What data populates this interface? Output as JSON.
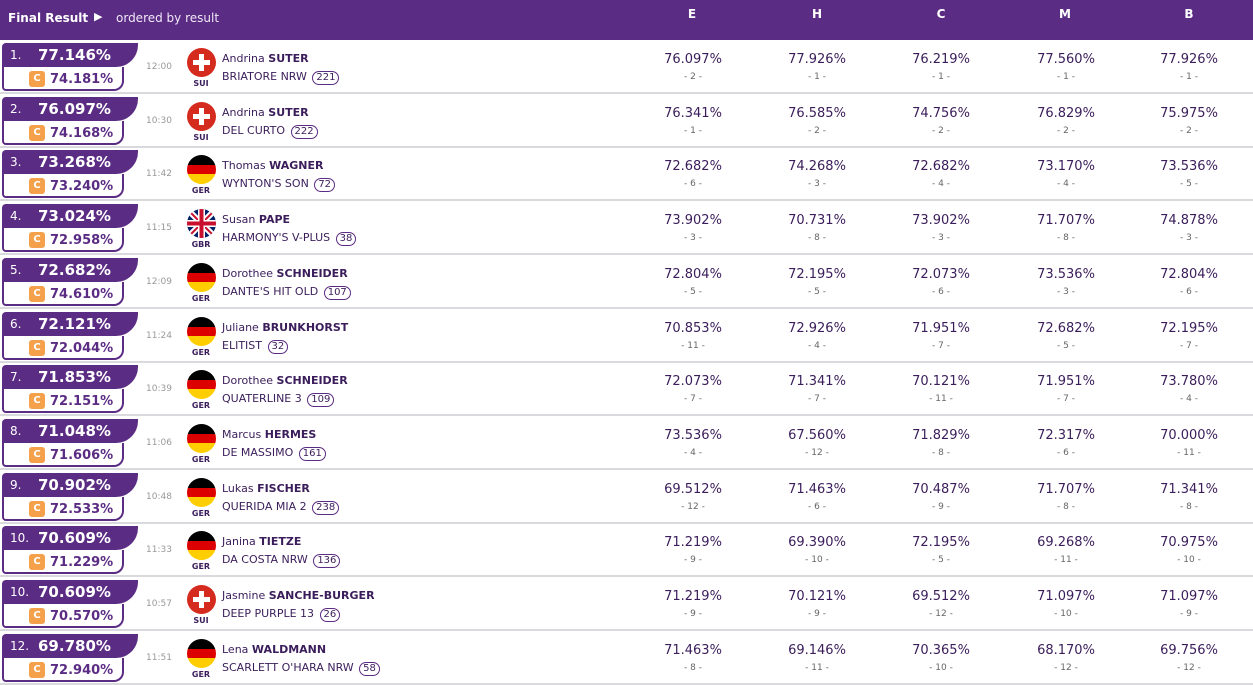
{
  "header": {
    "title": "Final Result",
    "arrow": "▶",
    "subtitle": "ordered by result",
    "judges": [
      "E",
      "H",
      "C",
      "M",
      "B"
    ]
  },
  "colors": {
    "brand": "#5b2c83",
    "cup": "#f5a04a"
  },
  "rows": [
    {
      "rank": "1.",
      "total": "77.146%",
      "sub": "74.181%",
      "time": "12:00",
      "nation": "SUI",
      "first": "Andrina",
      "last": "SUTER",
      "horse": "BRIATORE NRW",
      "num": "221",
      "scores": [
        {
          "s": "76.097%",
          "r": "- 2 -"
        },
        {
          "s": "77.926%",
          "r": "- 1 -"
        },
        {
          "s": "76.219%",
          "r": "- 1 -"
        },
        {
          "s": "77.560%",
          "r": "- 1 -"
        },
        {
          "s": "77.926%",
          "r": "- 1 -"
        }
      ]
    },
    {
      "rank": "2.",
      "total": "76.097%",
      "sub": "74.168%",
      "time": "10:30",
      "nation": "SUI",
      "first": "Andrina",
      "last": "SUTER",
      "horse": "DEL CURTO",
      "num": "222",
      "scores": [
        {
          "s": "76.341%",
          "r": "- 1 -"
        },
        {
          "s": "76.585%",
          "r": "- 2 -"
        },
        {
          "s": "74.756%",
          "r": "- 2 -"
        },
        {
          "s": "76.829%",
          "r": "- 2 -"
        },
        {
          "s": "75.975%",
          "r": "- 2 -"
        }
      ]
    },
    {
      "rank": "3.",
      "total": "73.268%",
      "sub": "73.240%",
      "time": "11:42",
      "nation": "GER",
      "first": "Thomas",
      "last": "WAGNER",
      "horse": "WYNTON'S SON",
      "num": "72",
      "scores": [
        {
          "s": "72.682%",
          "r": "- 6 -"
        },
        {
          "s": "74.268%",
          "r": "- 3 -"
        },
        {
          "s": "72.682%",
          "r": "- 4 -"
        },
        {
          "s": "73.170%",
          "r": "- 4 -"
        },
        {
          "s": "73.536%",
          "r": "- 5 -"
        }
      ]
    },
    {
      "rank": "4.",
      "total": "73.024%",
      "sub": "72.958%",
      "time": "11:15",
      "nation": "GBR",
      "first": "Susan",
      "last": "PAPE",
      "horse": "HARMONY'S V-PLUS",
      "num": "38",
      "scores": [
        {
          "s": "73.902%",
          "r": "- 3 -"
        },
        {
          "s": "70.731%",
          "r": "- 8 -"
        },
        {
          "s": "73.902%",
          "r": "- 3 -"
        },
        {
          "s": "71.707%",
          "r": "- 8 -"
        },
        {
          "s": "74.878%",
          "r": "- 3 -"
        }
      ]
    },
    {
      "rank": "5.",
      "total": "72.682%",
      "sub": "74.610%",
      "time": "12:09",
      "nation": "GER",
      "first": "Dorothee",
      "last": "SCHNEIDER",
      "horse": "DANTE'S HIT OLD",
      "num": "107",
      "scores": [
        {
          "s": "72.804%",
          "r": "- 5 -"
        },
        {
          "s": "72.195%",
          "r": "- 5 -"
        },
        {
          "s": "72.073%",
          "r": "- 6 -"
        },
        {
          "s": "73.536%",
          "r": "- 3 -"
        },
        {
          "s": "72.804%",
          "r": "- 6 -"
        }
      ]
    },
    {
      "rank": "6.",
      "total": "72.121%",
      "sub": "72.044%",
      "time": "11:24",
      "nation": "GER",
      "first": "Juliane",
      "last": "BRUNKHORST",
      "horse": "ELITIST",
      "num": "32",
      "scores": [
        {
          "s": "70.853%",
          "r": "- 11 -"
        },
        {
          "s": "72.926%",
          "r": "- 4 -"
        },
        {
          "s": "71.951%",
          "r": "- 7 -"
        },
        {
          "s": "72.682%",
          "r": "- 5 -"
        },
        {
          "s": "72.195%",
          "r": "- 7 -"
        }
      ]
    },
    {
      "rank": "7.",
      "total": "71.853%",
      "sub": "72.151%",
      "time": "10:39",
      "nation": "GER",
      "first": "Dorothee",
      "last": "SCHNEIDER",
      "horse": "QUATERLINE 3",
      "num": "109",
      "scores": [
        {
          "s": "72.073%",
          "r": "- 7 -"
        },
        {
          "s": "71.341%",
          "r": "- 7 -"
        },
        {
          "s": "70.121%",
          "r": "- 11 -"
        },
        {
          "s": "71.951%",
          "r": "- 7 -"
        },
        {
          "s": "73.780%",
          "r": "- 4 -"
        }
      ]
    },
    {
      "rank": "8.",
      "total": "71.048%",
      "sub": "71.606%",
      "time": "11:06",
      "nation": "GER",
      "first": "Marcus",
      "last": "HERMES",
      "horse": "DE MASSIMO",
      "num": "161",
      "scores": [
        {
          "s": "73.536%",
          "r": "- 4 -"
        },
        {
          "s": "67.560%",
          "r": "- 12 -"
        },
        {
          "s": "71.829%",
          "r": "- 8 -"
        },
        {
          "s": "72.317%",
          "r": "- 6 -"
        },
        {
          "s": "70.000%",
          "r": "- 11 -"
        }
      ]
    },
    {
      "rank": "9.",
      "total": "70.902%",
      "sub": "72.533%",
      "time": "10:48",
      "nation": "GER",
      "first": "Lukas",
      "last": "FISCHER",
      "horse": "QUERIDA MIA 2",
      "num": "238",
      "scores": [
        {
          "s": "69.512%",
          "r": "- 12 -"
        },
        {
          "s": "71.463%",
          "r": "- 6 -"
        },
        {
          "s": "70.487%",
          "r": "- 9 -"
        },
        {
          "s": "71.707%",
          "r": "- 8 -"
        },
        {
          "s": "71.341%",
          "r": "- 8 -"
        }
      ]
    },
    {
      "rank": "10.",
      "total": "70.609%",
      "sub": "71.229%",
      "time": "11:33",
      "nation": "GER",
      "first": "Janina",
      "last": "TIETZE",
      "horse": "DA COSTA NRW",
      "num": "136",
      "scores": [
        {
          "s": "71.219%",
          "r": "- 9 -"
        },
        {
          "s": "69.390%",
          "r": "- 10 -"
        },
        {
          "s": "72.195%",
          "r": "- 5 -"
        },
        {
          "s": "69.268%",
          "r": "- 11 -"
        },
        {
          "s": "70.975%",
          "r": "- 10 -"
        }
      ]
    },
    {
      "rank": "10.",
      "total": "70.609%",
      "sub": "70.570%",
      "time": "10:57",
      "nation": "SUI",
      "first": "Jasmine",
      "last": "SANCHE-BURGER",
      "horse": "DEEP PURPLE 13",
      "num": "26",
      "scores": [
        {
          "s": "71.219%",
          "r": "- 9 -"
        },
        {
          "s": "70.121%",
          "r": "- 9 -"
        },
        {
          "s": "69.512%",
          "r": "- 12 -"
        },
        {
          "s": "71.097%",
          "r": "- 10 -"
        },
        {
          "s": "71.097%",
          "r": "- 9 -"
        }
      ]
    },
    {
      "rank": "12.",
      "total": "69.780%",
      "sub": "72.940%",
      "time": "11:51",
      "nation": "GER",
      "first": "Lena",
      "last": "WALDMANN",
      "horse": "SCARLETT O'HARA NRW",
      "num": "58",
      "scores": [
        {
          "s": "71.463%",
          "r": "- 8 -"
        },
        {
          "s": "69.146%",
          "r": "- 11 -"
        },
        {
          "s": "70.365%",
          "r": "- 10 -"
        },
        {
          "s": "68.170%",
          "r": "- 12 -"
        },
        {
          "s": "69.756%",
          "r": "- 12 -"
        }
      ]
    }
  ]
}
